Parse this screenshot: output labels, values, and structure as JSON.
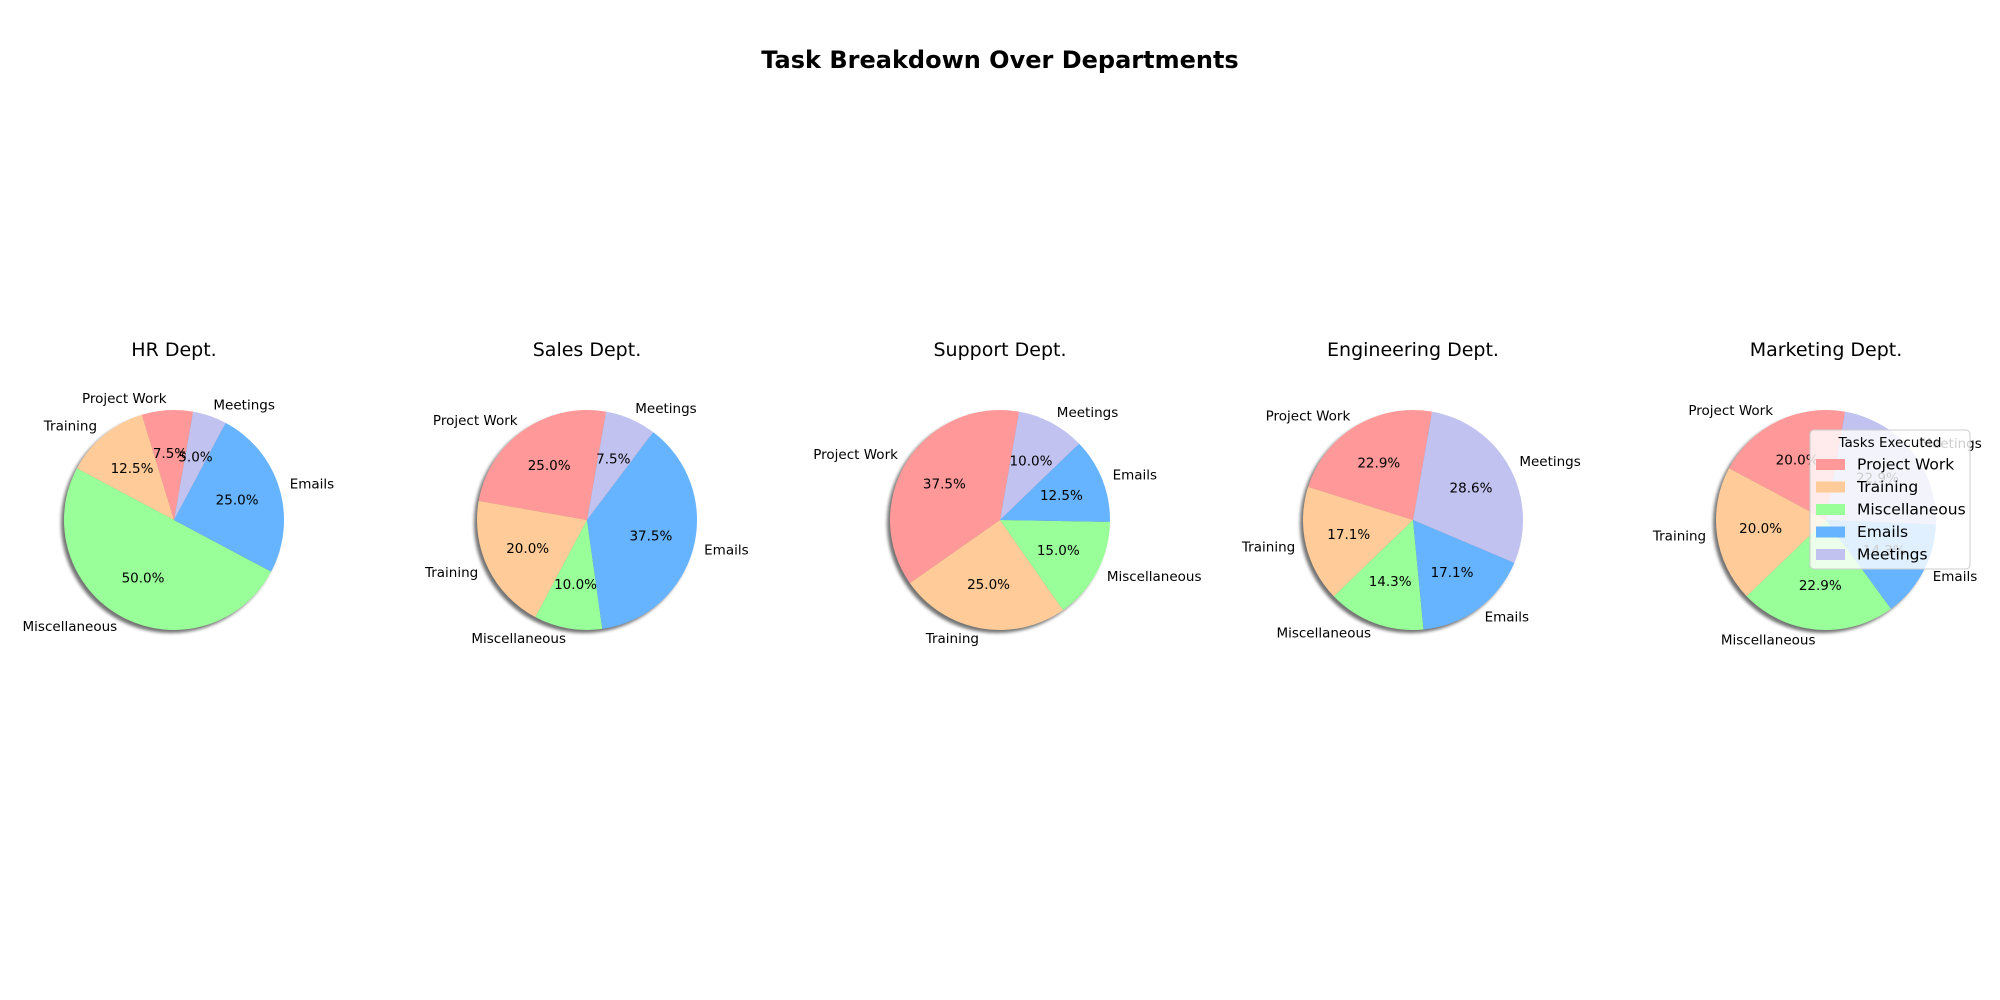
{
  "chart_data": {
    "type": "pie",
    "title": "Task Breakdown Over Departments",
    "categories": [
      "Project Work",
      "Training",
      "Miscellaneous",
      "Emails",
      "Meetings"
    ],
    "colors": [
      "#ff9999",
      "#ffcc99",
      "#99ff99",
      "#66b3ff",
      "#c2c2f0"
    ],
    "shadow": true,
    "start_angle_deg": 80,
    "direction": "counterclockwise",
    "legend": {
      "title": "Tasks Executed",
      "entries": [
        "Project Work",
        "Training",
        "Miscellaneous",
        "Emails",
        "Meetings"
      ],
      "placement": "right, overlapping last pie"
    },
    "panels": [
      {
        "title": "HR Dept.",
        "values": [
          7.5,
          12.5,
          50.0,
          25.0,
          5.0
        ],
        "pct_labels": [
          "7.5%",
          "12.5%",
          "50.0%",
          "25.0%",
          "5.0%"
        ]
      },
      {
        "title": "Sales Dept.",
        "values": [
          25.0,
          20.0,
          10.0,
          37.5,
          7.5
        ],
        "pct_labels": [
          "25.0%",
          "20.0%",
          "10.0%",
          "37.5%",
          "7.5%"
        ]
      },
      {
        "title": "Support Dept.",
        "values": [
          37.5,
          25.0,
          15.0,
          12.5,
          10.0
        ],
        "pct_labels": [
          "37.5%",
          "25.0%",
          "15.0%",
          "12.5%",
          "10.0%"
        ]
      },
      {
        "title": "Engineering Dept.",
        "values": [
          22.9,
          17.1,
          14.3,
          17.1,
          28.6
        ],
        "pct_labels": [
          "22.9%",
          "17.1%",
          "14.3%",
          "17.1%",
          "28.6%"
        ]
      },
      {
        "title": "Marketing Dept.",
        "values": [
          20.0,
          20.0,
          22.9,
          14.3,
          22.9
        ],
        "pct_labels": [
          "20.0%",
          "20.0%",
          "22.9%",
          "14.3%",
          "22.9%"
        ]
      }
    ]
  }
}
